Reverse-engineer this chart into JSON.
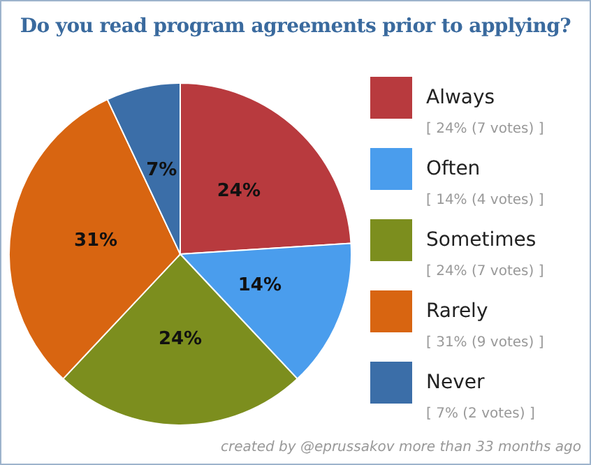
{
  "chart_data": {
    "type": "pie",
    "title": "Do you read program agreements prior to applying?",
    "categories": [
      "Always",
      "Often",
      "Sometimes",
      "Rarely",
      "Never"
    ],
    "values": [
      24,
      14,
      24,
      31,
      7
    ],
    "colors": [
      "#b83a3e",
      "#4a9ded",
      "#7c8e1e",
      "#d86511",
      "#3b6ea8"
    ],
    "value_labels": [
      "24%",
      "14%",
      "24%",
      "31%",
      "7%"
    ],
    "legend": "right",
    "annotations": [
      "[ 24% (7 votes) ]",
      "[ 14% (4 votes) ]",
      "[ 24% (7 votes) ]",
      "[ 31% (9 votes) ]",
      "[ 7% (2 votes) ]",
      "created by @eprussakov more than 33 months ago"
    ]
  }
}
